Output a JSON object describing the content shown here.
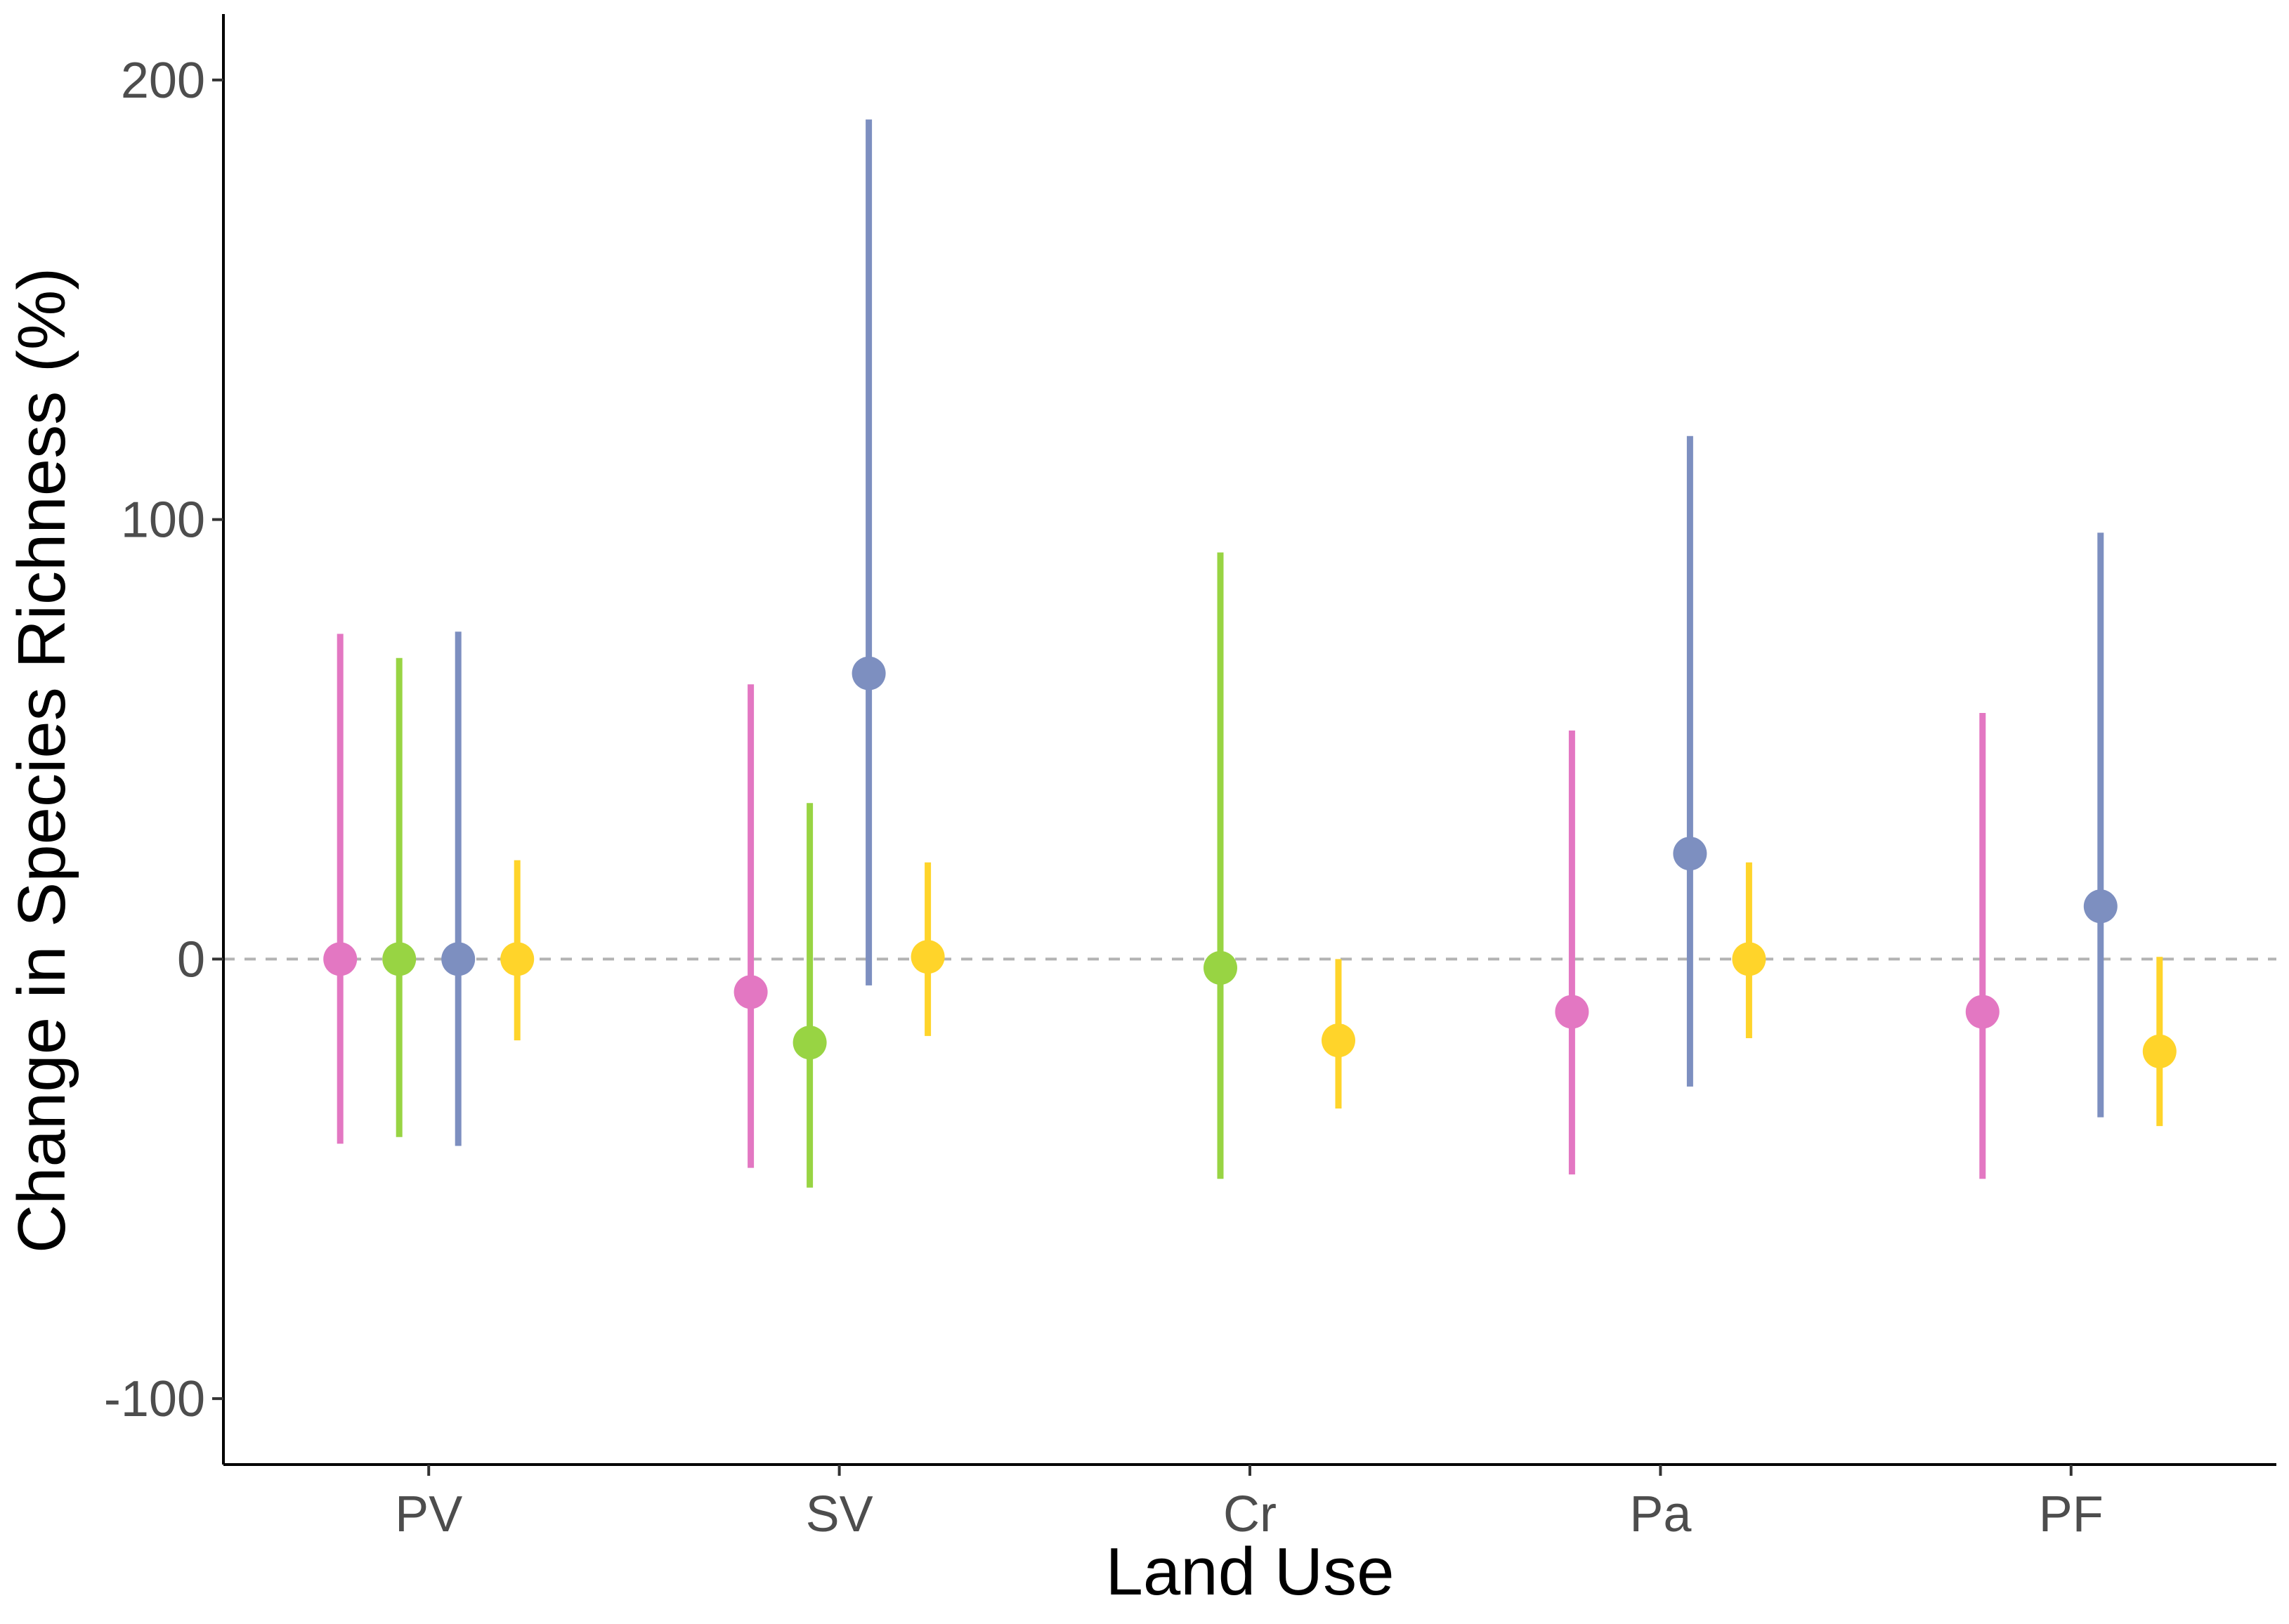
{
  "chart_data": {
    "type": "scatter",
    "subtype": "point-range",
    "title": "",
    "xlabel": "Land Use",
    "ylabel": "Change in Species Richness (%)",
    "ylim": [
      -115,
      215
    ],
    "y_ticks": [
      -100,
      0,
      100,
      200
    ],
    "y_tick_labels": [
      "-100",
      "0",
      "100",
      "200"
    ],
    "categories": [
      "PV",
      "SV",
      "Cr",
      "Pa",
      "PF"
    ],
    "reference_line": {
      "y": 0,
      "style": "dashed",
      "color": "#b3b3b3"
    },
    "grid": false,
    "legend": "none",
    "series": [
      {
        "color": "#e377c2",
        "points": [
          {
            "category": "PV",
            "y": 0,
            "lower": -42,
            "upper": 74
          },
          {
            "category": "SV",
            "y": -7.5,
            "lower": -47.5,
            "upper": 62.5
          },
          {
            "category": "Cr",
            "y": null,
            "lower": null,
            "upper": null
          },
          {
            "category": "Pa",
            "y": -12,
            "lower": -49,
            "upper": 52
          },
          {
            "category": "PF",
            "y": -12,
            "lower": -50,
            "upper": 56
          }
        ]
      },
      {
        "color": "#98d443",
        "points": [
          {
            "category": "PV",
            "y": 0,
            "lower": -40.5,
            "upper": 68.5
          },
          {
            "category": "SV",
            "y": -19,
            "lower": -52,
            "upper": 35.5
          },
          {
            "category": "Cr",
            "y": -2,
            "lower": -50,
            "upper": 92.5
          },
          {
            "category": "Pa",
            "y": null,
            "lower": null,
            "upper": null
          },
          {
            "category": "PF",
            "y": null,
            "lower": null,
            "upper": null
          }
        ]
      },
      {
        "color": "#7d8fc0",
        "points": [
          {
            "category": "PV",
            "y": 0,
            "lower": -42.5,
            "upper": 74.5
          },
          {
            "category": "SV",
            "y": 65,
            "lower": -6,
            "upper": 191
          },
          {
            "category": "Cr",
            "y": null,
            "lower": null,
            "upper": null
          },
          {
            "category": "Pa",
            "y": 24,
            "lower": -29,
            "upper": 119
          },
          {
            "category": "PF",
            "y": 12,
            "lower": -36,
            "upper": 97
          }
        ]
      },
      {
        "color": "#ffd42a",
        "points": [
          {
            "category": "PV",
            "y": 0,
            "lower": -18.5,
            "upper": 22.5
          },
          {
            "category": "SV",
            "y": 0.5,
            "lower": -17.5,
            "upper": 22
          },
          {
            "category": "Cr",
            "y": -18.5,
            "lower": -34,
            "upper": 0
          },
          {
            "category": "Pa",
            "y": 0,
            "lower": -18,
            "upper": 22
          },
          {
            "category": "PF",
            "y": -21,
            "lower": -38,
            "upper": 0.5
          }
        ]
      }
    ]
  }
}
